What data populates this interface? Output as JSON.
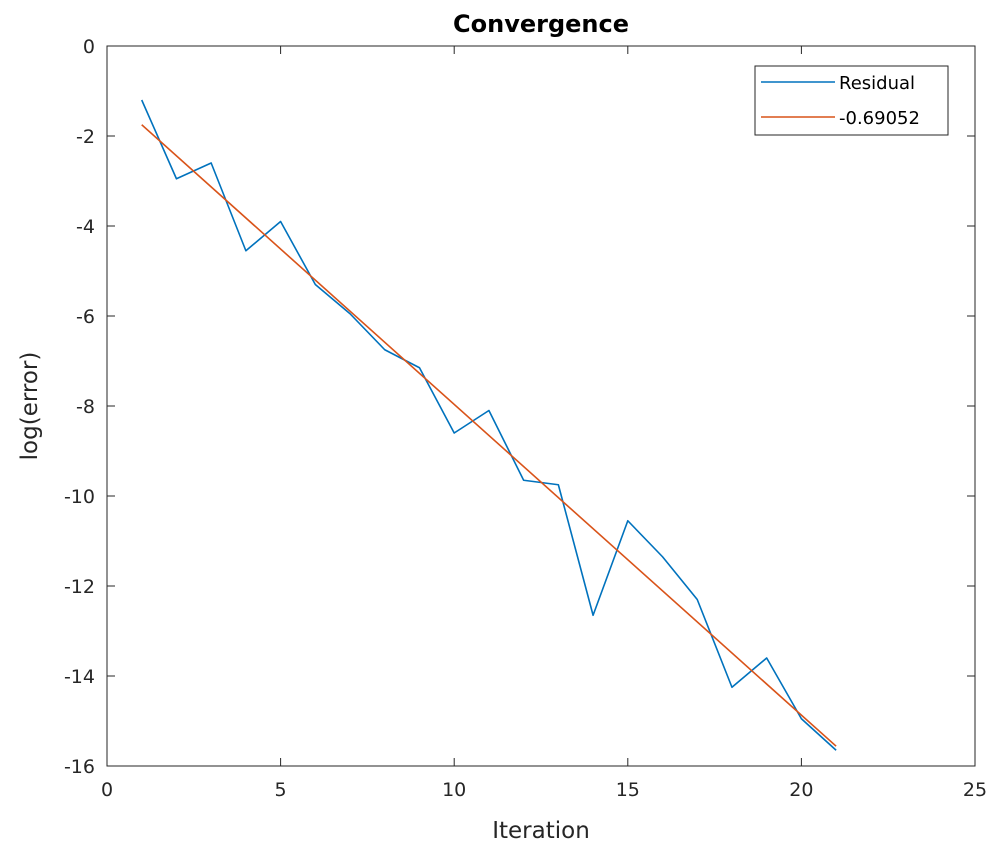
{
  "chart_data": {
    "type": "line",
    "title": "Convergence",
    "xlabel": "Iteration",
    "ylabel": "log(error)",
    "xlim": [
      0,
      25
    ],
    "ylim": [
      -16,
      0
    ],
    "xticks": [
      0,
      5,
      10,
      15,
      20,
      25
    ],
    "yticks": [
      0,
      -2,
      -4,
      -6,
      -8,
      -10,
      -12,
      -14,
      -16
    ],
    "grid": false,
    "legend_position": "top-right",
    "series": [
      {
        "name": "Residual",
        "color": "#0072BD",
        "x": [
          1,
          2,
          3,
          4,
          5,
          6,
          7,
          8,
          9,
          10,
          11,
          12,
          13,
          14,
          15,
          16,
          17,
          18,
          19,
          20,
          21
        ],
        "y": [
          -1.2,
          -2.95,
          -2.6,
          -4.55,
          -3.9,
          -5.3,
          -5.95,
          -6.75,
          -7.15,
          -8.6,
          -8.1,
          -9.65,
          -9.75,
          -12.65,
          -10.55,
          -11.35,
          -12.3,
          -14.25,
          -13.6,
          -14.95,
          -15.65
        ]
      },
      {
        "name": "-0.69052",
        "color": "#D95319",
        "x": [
          1,
          21
        ],
        "y": [
          -1.75,
          -15.56
        ]
      }
    ]
  }
}
